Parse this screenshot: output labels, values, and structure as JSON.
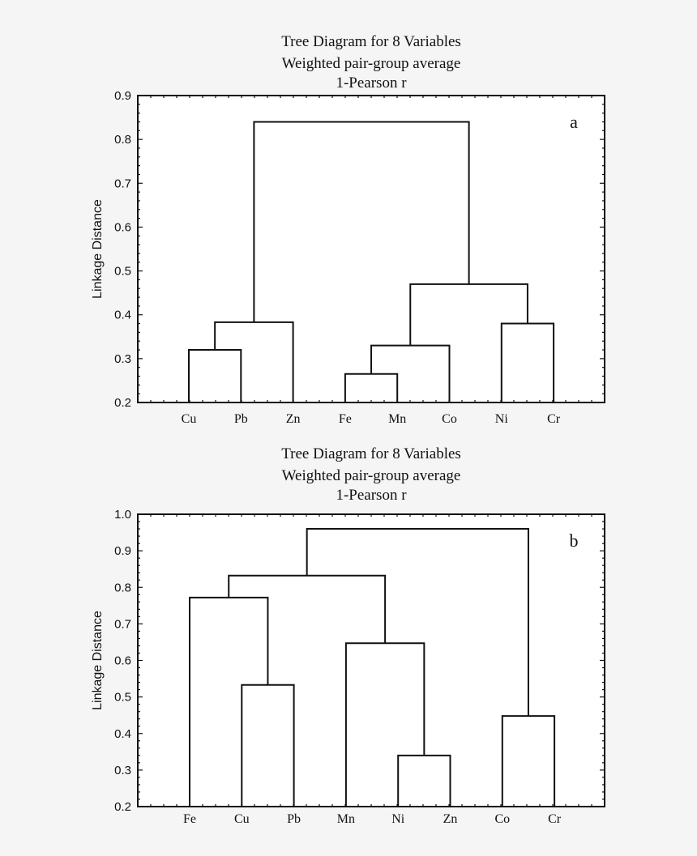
{
  "chart_data": [
    {
      "type": "dendrogram",
      "title_lines": [
        "Tree Diagram for 8 Variables",
        "Weighted pair-group average",
        "1-Pearson r"
      ],
      "panel_label": "a",
      "ylabel": "Linkage Distance",
      "ylim": [
        0.2,
        0.9
      ],
      "yticks": [
        "0.2",
        "0.3",
        "0.4",
        "0.5",
        "0.6",
        "0.7",
        "0.8",
        "0.9"
      ],
      "leaves": [
        "Cu",
        "Pb",
        "Zn",
        "Fe",
        "Mn",
        "Co",
        "Ni",
        "Cr"
      ],
      "merges": [
        {
          "left": "Fe",
          "right": "Mn",
          "height": 0.265
        },
        {
          "left": "Cu",
          "right": "Pb",
          "height": 0.32
        },
        {
          "left": "Fe+Mn",
          "right": "Co",
          "height": 0.33
        },
        {
          "left": "Ni",
          "right": "Cr",
          "height": 0.38
        },
        {
          "left": "Cu+Pb",
          "right": "Zn",
          "height": 0.383
        },
        {
          "left": "Fe+Mn+Co",
          "right": "Ni+Cr",
          "height": 0.47
        },
        {
          "left": "Cu+Pb+Zn",
          "right": "Fe+Mn+Co+Ni+Cr",
          "height": 0.84
        }
      ]
    },
    {
      "type": "dendrogram",
      "title_lines": [
        "Tree Diagram for 8 Variables",
        "Weighted pair-group average",
        "1-Pearson r"
      ],
      "panel_label": "b",
      "ylabel": "Linkage Distance",
      "ylim": [
        0.2,
        1.0
      ],
      "yticks": [
        "0.2",
        "0.3",
        "0.4",
        "0.5",
        "0.6",
        "0.7",
        "0.8",
        "0.9",
        "1.0"
      ],
      "leaves": [
        "Fe",
        "Cu",
        "Pb",
        "Mn",
        "Ni",
        "Zn",
        "Co",
        "Cr"
      ],
      "merges": [
        {
          "left": "Ni",
          "right": "Zn",
          "height": 0.34
        },
        {
          "left": "Co",
          "right": "Cr",
          "height": 0.448
        },
        {
          "left": "Cu",
          "right": "Pb",
          "height": 0.533
        },
        {
          "left": "Mn",
          "right": "Ni+Zn",
          "height": 0.647
        },
        {
          "left": "Fe",
          "right": "Cu+Pb",
          "height": 0.772
        },
        {
          "left": "Fe+Cu+Pb",
          "right": "Mn+Ni+Zn",
          "height": 0.832
        },
        {
          "left": "Fe+Cu+Pb+Mn+Ni+Zn",
          "right": "Co+Cr",
          "height": 0.96
        }
      ]
    }
  ]
}
